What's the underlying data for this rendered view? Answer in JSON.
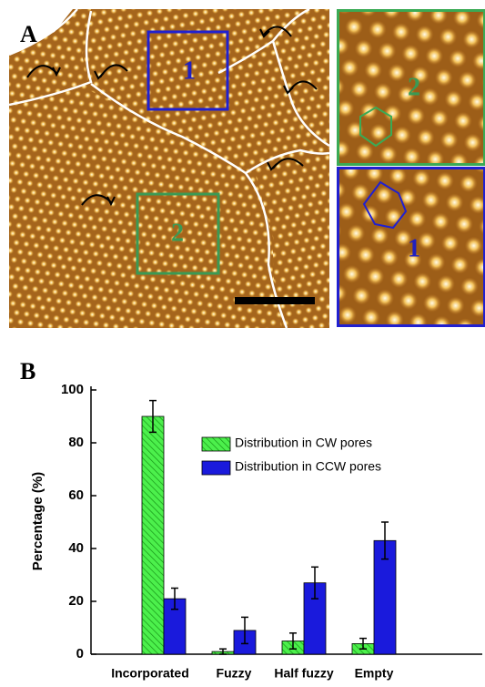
{
  "panel_a": {
    "label": "A",
    "box_labels": [
      "1",
      "2"
    ],
    "inset_labels": [
      "2",
      "1"
    ]
  },
  "chart_data": {
    "type": "bar",
    "panel_label": "B",
    "y_label": "Percentage (%)",
    "categories": [
      "Incorporated",
      "Fuzzy",
      "Half fuzzy",
      "Empty"
    ],
    "series": [
      {
        "name": "Distribution in CW pores",
        "color": "#33ee33",
        "values": [
          90,
          1,
          5,
          4
        ],
        "errors": [
          6,
          1,
          3,
          2
        ]
      },
      {
        "name": "Distribution in CCW pores",
        "color": "#1a1adc",
        "values": [
          21,
          9,
          27,
          43
        ],
        "errors": [
          4,
          5,
          6,
          7
        ]
      }
    ],
    "ylim": [
      0,
      100
    ],
    "yticks": [
      0,
      20,
      40,
      60,
      80,
      100
    ]
  }
}
